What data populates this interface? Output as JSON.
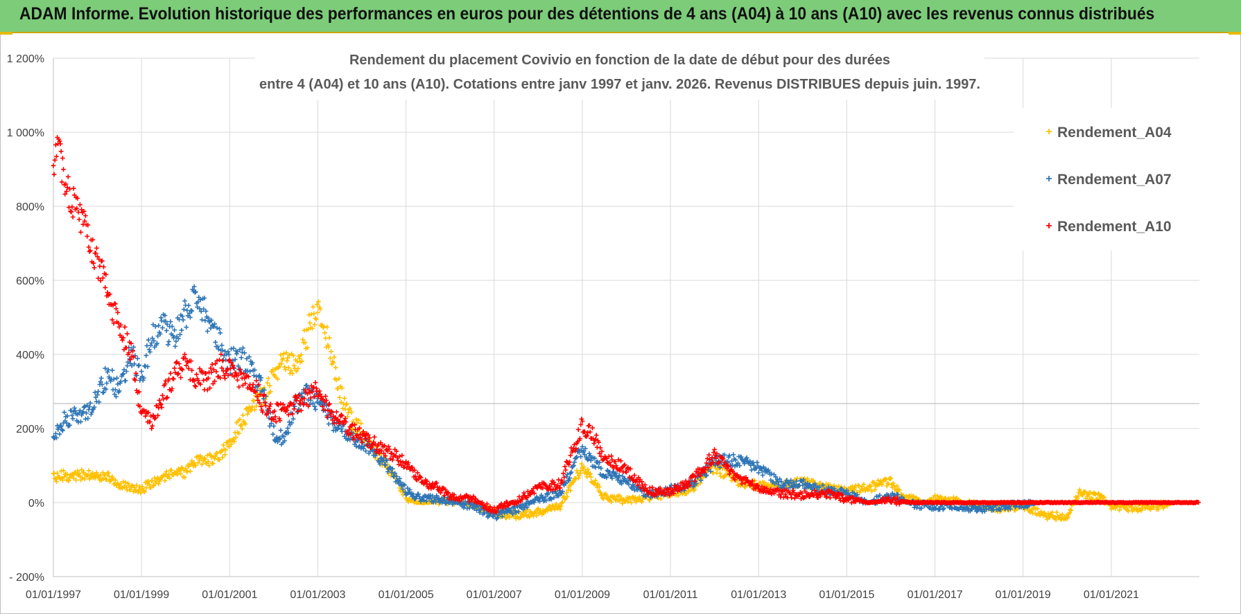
{
  "banner": {
    "title": "ADAM Informe. Evolution historique des performances en euros pour des détentions de 4 ans (A04) à 10 ans (A10) avec les revenus connus distribués"
  },
  "chart_data": {
    "type": "scatter",
    "title": "Rendement du placement Covivio en fonction de la date de début pour des durées",
    "subtitle": "entre 4 (A04) et 10 ans (A10).  Cotations entre janv 1997 et janv. 2026. Revenus DISTRIBUES depuis juin. 1997.",
    "xlabel": "",
    "ylabel": "",
    "x_range": [
      "1997-01-01",
      "2023-01-01"
    ],
    "ylim": [
      -200,
      1200
    ],
    "y_ticks": [
      -200,
      0,
      200,
      400,
      600,
      800,
      1000,
      1200
    ],
    "y_tick_labels": [
      "- 200%",
      "0%",
      "200%",
      "400%",
      "600%",
      "800%",
      "1 000%",
      "1 200%"
    ],
    "x_tick_labels": [
      "01/01/1997",
      "01/01/1999",
      "01/01/2001",
      "01/01/2003",
      "01/01/2005",
      "01/01/2007",
      "01/01/2009",
      "01/01/2011",
      "01/01/2013",
      "01/01/2015",
      "01/01/2017",
      "01/01/2019",
      "01/01/2021"
    ],
    "grid": true,
    "marker": "+",
    "legend_position": "top-right",
    "series": [
      {
        "name": "Rendement_A04",
        "color": "#ffc000",
        "points": [
          [
            "1997-01-01",
            65
          ],
          [
            "1997-04-01",
            75
          ],
          [
            "1997-07-01",
            70
          ],
          [
            "1997-10-01",
            78
          ],
          [
            "1998-01-01",
            72
          ],
          [
            "1998-04-01",
            70
          ],
          [
            "1998-07-01",
            50
          ],
          [
            "1998-10-01",
            40
          ],
          [
            "1999-01-01",
            35
          ],
          [
            "1999-04-01",
            55
          ],
          [
            "1999-07-01",
            70
          ],
          [
            "1999-10-01",
            80
          ],
          [
            "2000-01-01",
            80
          ],
          [
            "2000-04-01",
            110
          ],
          [
            "2000-07-01",
            115
          ],
          [
            "2000-10-01",
            125
          ],
          [
            "2001-01-01",
            165
          ],
          [
            "2001-04-01",
            210
          ],
          [
            "2001-07-01",
            260
          ],
          [
            "2001-10-01",
            290
          ],
          [
            "2002-01-01",
            340
          ],
          [
            "2002-04-01",
            385
          ],
          [
            "2002-07-01",
            365
          ],
          [
            "2002-10-01",
            450
          ],
          [
            "2003-01-01",
            545
          ],
          [
            "2003-04-01",
            420
          ],
          [
            "2003-07-01",
            300
          ],
          [
            "2003-10-01",
            225
          ],
          [
            "2004-01-01",
            190
          ],
          [
            "2004-04-01",
            145
          ],
          [
            "2004-07-01",
            110
          ],
          [
            "2004-10-01",
            70
          ],
          [
            "2005-01-01",
            15
          ],
          [
            "2005-04-01",
            0
          ],
          [
            "2005-07-01",
            0
          ],
          [
            "2005-10-01",
            5
          ],
          [
            "2006-01-01",
            5
          ],
          [
            "2006-07-01",
            -5
          ],
          [
            "2007-01-01",
            -25
          ],
          [
            "2007-07-01",
            -35
          ],
          [
            "2008-01-01",
            -25
          ],
          [
            "2008-07-01",
            -10
          ],
          [
            "2009-01-01",
            100
          ],
          [
            "2009-04-01",
            60
          ],
          [
            "2009-07-01",
            15
          ],
          [
            "2010-01-01",
            5
          ],
          [
            "2010-07-01",
            15
          ],
          [
            "2011-01-01",
            25
          ],
          [
            "2011-07-01",
            40
          ],
          [
            "2012-01-01",
            95
          ],
          [
            "2012-07-01",
            60
          ],
          [
            "2013-01-01",
            45
          ],
          [
            "2013-07-01",
            45
          ],
          [
            "2014-01-01",
            55
          ],
          [
            "2014-07-01",
            40
          ],
          [
            "2015-01-01",
            30
          ],
          [
            "2015-07-01",
            40
          ],
          [
            "2016-01-01",
            60
          ],
          [
            "2016-04-01",
            15
          ],
          [
            "2016-10-01",
            0
          ],
          [
            "2017-01-01",
            10
          ],
          [
            "2017-07-01",
            5
          ],
          [
            "2018-01-01",
            -10
          ],
          [
            "2018-07-01",
            -15
          ],
          [
            "2019-01-01",
            -10
          ],
          [
            "2019-07-01",
            -35
          ],
          [
            "2020-01-01",
            -40
          ],
          [
            "2020-04-01",
            25
          ],
          [
            "2020-10-01",
            15
          ],
          [
            "2021-01-01",
            -10
          ],
          [
            "2021-07-01",
            -15
          ],
          [
            "2022-01-01",
            -10
          ],
          [
            "2022-06-01",
            0
          ]
        ]
      },
      {
        "name": "Rendement_A07",
        "color": "#2e75b6",
        "points": [
          [
            "1997-01-01",
            170
          ],
          [
            "1997-04-01",
            225
          ],
          [
            "1997-07-01",
            240
          ],
          [
            "1997-10-01",
            240
          ],
          [
            "1998-01-01",
            285
          ],
          [
            "1998-04-01",
            350
          ],
          [
            "1998-07-01",
            300
          ],
          [
            "1998-10-01",
            400
          ],
          [
            "1999-01-01",
            350
          ],
          [
            "1999-04-01",
            440
          ],
          [
            "1999-07-01",
            470
          ],
          [
            "1999-10-01",
            450
          ],
          [
            "2000-01-01",
            510
          ],
          [
            "2000-04-01",
            560
          ],
          [
            "2000-07-01",
            500
          ],
          [
            "2000-10-01",
            440
          ],
          [
            "2001-01-01",
            380
          ],
          [
            "2001-04-01",
            390
          ],
          [
            "2001-07-01",
            360
          ],
          [
            "2001-10-01",
            300
          ],
          [
            "2002-01-01",
            190
          ],
          [
            "2002-04-01",
            170
          ],
          [
            "2002-07-01",
            260
          ],
          [
            "2002-10-01",
            290
          ],
          [
            "2003-01-01",
            270
          ],
          [
            "2003-04-01",
            230
          ],
          [
            "2003-07-01",
            200
          ],
          [
            "2003-10-01",
            175
          ],
          [
            "2004-01-01",
            160
          ],
          [
            "2004-04-01",
            140
          ],
          [
            "2004-07-01",
            110
          ],
          [
            "2004-10-01",
            70
          ],
          [
            "2005-01-01",
            30
          ],
          [
            "2005-04-01",
            15
          ],
          [
            "2005-07-01",
            10
          ],
          [
            "2005-10-01",
            10
          ],
          [
            "2006-01-01",
            5
          ],
          [
            "2006-07-01",
            -10
          ],
          [
            "2007-01-01",
            -35
          ],
          [
            "2007-07-01",
            -20
          ],
          [
            "2008-01-01",
            10
          ],
          [
            "2008-07-01",
            25
          ],
          [
            "2009-01-01",
            150
          ],
          [
            "2009-04-01",
            110
          ],
          [
            "2009-07-01",
            80
          ],
          [
            "2010-01-01",
            60
          ],
          [
            "2010-07-01",
            20
          ],
          [
            "2011-01-01",
            35
          ],
          [
            "2011-07-01",
            50
          ],
          [
            "2012-01-01",
            110
          ],
          [
            "2012-07-01",
            115
          ],
          [
            "2013-01-01",
            95
          ],
          [
            "2013-07-01",
            50
          ],
          [
            "2014-01-01",
            50
          ],
          [
            "2014-07-01",
            35
          ],
          [
            "2015-01-01",
            25
          ],
          [
            "2015-07-01",
            0
          ],
          [
            "2016-01-01",
            20
          ],
          [
            "2016-07-01",
            -5
          ],
          [
            "2017-01-01",
            -10
          ],
          [
            "2017-07-01",
            -10
          ],
          [
            "2018-01-01",
            -15
          ],
          [
            "2018-07-01",
            -10
          ],
          [
            "2019-01-01",
            -5
          ],
          [
            "2019-06-01",
            0
          ]
        ]
      },
      {
        "name": "Rendement_A10",
        "color": "#ff0000",
        "points": [
          [
            "1997-01-01",
            920
          ],
          [
            "1997-02-15",
            960
          ],
          [
            "1997-04-01",
            860
          ],
          [
            "1997-07-01",
            800
          ],
          [
            "1997-10-01",
            730
          ],
          [
            "1998-01-01",
            650
          ],
          [
            "1998-04-01",
            570
          ],
          [
            "1998-07-01",
            460
          ],
          [
            "1998-10-01",
            420
          ],
          [
            "1999-01-01",
            240
          ],
          [
            "1999-04-01",
            210
          ],
          [
            "1999-07-01",
            290
          ],
          [
            "1999-10-01",
            340
          ],
          [
            "2000-01-01",
            380
          ],
          [
            "2000-04-01",
            340
          ],
          [
            "2000-07-01",
            320
          ],
          [
            "2000-10-01",
            370
          ],
          [
            "2001-01-01",
            360
          ],
          [
            "2001-04-01",
            340
          ],
          [
            "2001-07-01",
            330
          ],
          [
            "2001-10-01",
            270
          ],
          [
            "2002-01-01",
            240
          ],
          [
            "2002-04-01",
            250
          ],
          [
            "2002-07-01",
            270
          ],
          [
            "2002-10-01",
            280
          ],
          [
            "2003-01-01",
            300
          ],
          [
            "2003-04-01",
            250
          ],
          [
            "2003-07-01",
            220
          ],
          [
            "2003-10-01",
            195
          ],
          [
            "2004-01-01",
            180
          ],
          [
            "2004-04-01",
            160
          ],
          [
            "2004-07-01",
            145
          ],
          [
            "2004-10-01",
            130
          ],
          [
            "2005-01-01",
            100
          ],
          [
            "2005-04-01",
            70
          ],
          [
            "2005-07-01",
            50
          ],
          [
            "2005-10-01",
            40
          ],
          [
            "2006-01-01",
            15
          ],
          [
            "2006-07-01",
            10
          ],
          [
            "2007-01-01",
            -20
          ],
          [
            "2007-07-01",
            5
          ],
          [
            "2008-01-01",
            40
          ],
          [
            "2008-07-01",
            50
          ],
          [
            "2009-01-01",
            210
          ],
          [
            "2009-04-01",
            180
          ],
          [
            "2009-07-01",
            120
          ],
          [
            "2010-01-01",
            90
          ],
          [
            "2010-07-01",
            30
          ],
          [
            "2011-01-01",
            30
          ],
          [
            "2011-07-01",
            60
          ],
          [
            "2012-01-01",
            130
          ],
          [
            "2012-07-01",
            70
          ],
          [
            "2013-01-01",
            40
          ],
          [
            "2013-07-01",
            25
          ],
          [
            "2014-01-01",
            20
          ],
          [
            "2014-07-01",
            25
          ],
          [
            "2015-01-01",
            10
          ],
          [
            "2015-07-01",
            0
          ],
          [
            "2016-01-01",
            5
          ],
          [
            "2016-07-01",
            0
          ],
          [
            "2017-01-01",
            0
          ],
          [
            "2018-01-01",
            0
          ],
          [
            "2019-01-01",
            0
          ],
          [
            "2020-01-01",
            0
          ],
          [
            "2021-01-01",
            0
          ],
          [
            "2022-01-01",
            0
          ],
          [
            "2022-12-31",
            0
          ]
        ]
      }
    ]
  }
}
